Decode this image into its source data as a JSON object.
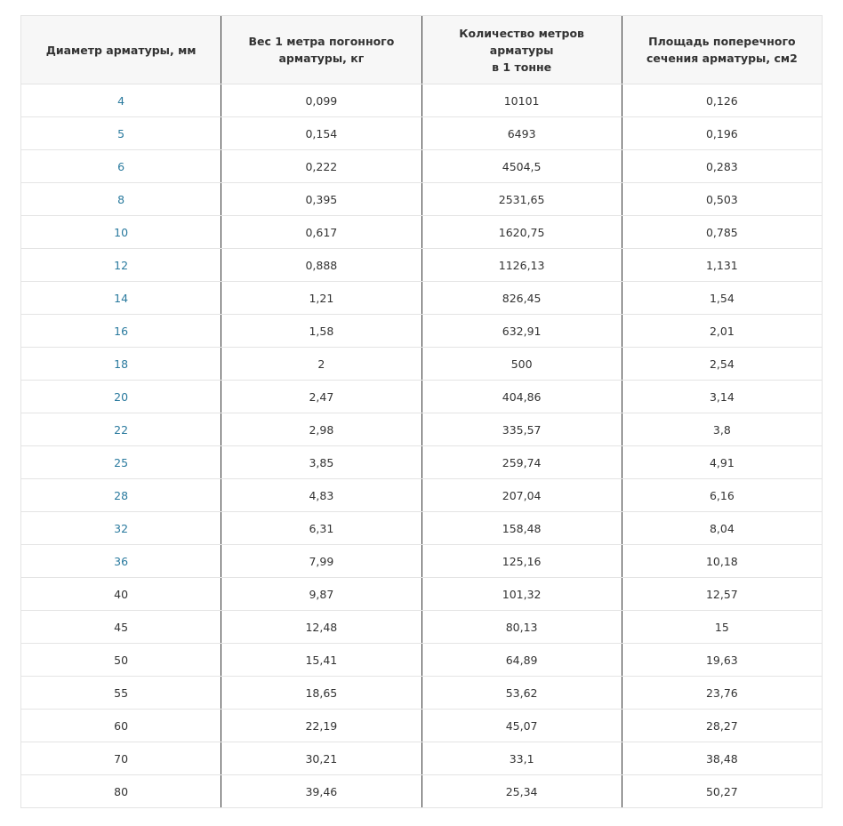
{
  "colors": {
    "link": "#2a7a9e",
    "header_bg": "#f7f7f7"
  },
  "table": {
    "headers": [
      "Диаметр арматуры, мм",
      "Вес 1 метра погонного арматуры, кг",
      "Количество метров арматуры в 1 тонне",
      "Площадь поперечного сечения арматуры, см2"
    ],
    "header_lines": [
      [
        "Диаметр арматуры, мм"
      ],
      [
        "Вес 1 метра погонного",
        "арматуры, кг"
      ],
      [
        "Количество метров",
        "арматуры",
        "в 1 тонне"
      ],
      [
        "Площадь поперечного",
        "сечения арматуры, см2"
      ]
    ],
    "rows": [
      {
        "d": "4",
        "w": "0,099",
        "m": "10101",
        "a": "0,126",
        "link": true
      },
      {
        "d": "5",
        "w": "0,154",
        "m": "6493",
        "a": "0,196",
        "link": true
      },
      {
        "d": "6",
        "w": "0,222",
        "m": "4504,5",
        "a": "0,283",
        "link": true
      },
      {
        "d": "8",
        "w": "0,395",
        "m": "2531,65",
        "a": "0,503",
        "link": true
      },
      {
        "d": "10",
        "w": "0,617",
        "m": "1620,75",
        "a": "0,785",
        "link": true
      },
      {
        "d": "12",
        "w": "0,888",
        "m": "1126,13",
        "a": "1,131",
        "link": true
      },
      {
        "d": "14",
        "w": "1,21",
        "m": "826,45",
        "a": "1,54",
        "link": true
      },
      {
        "d": "16",
        "w": "1,58",
        "m": "632,91",
        "a": "2,01",
        "link": true
      },
      {
        "d": "18",
        "w": "2",
        "m": "500",
        "a": "2,54",
        "link": true
      },
      {
        "d": "20",
        "w": "2,47",
        "m": "404,86",
        "a": "3,14",
        "link": true
      },
      {
        "d": "22",
        "w": "2,98",
        "m": "335,57",
        "a": "3,8",
        "link": true
      },
      {
        "d": "25",
        "w": "3,85",
        "m": "259,74",
        "a": "4,91",
        "link": true
      },
      {
        "d": "28",
        "w": "4,83",
        "m": "207,04",
        "a": "6,16",
        "link": true
      },
      {
        "d": "32",
        "w": "6,31",
        "m": "158,48",
        "a": "8,04",
        "link": true
      },
      {
        "d": "36",
        "w": "7,99",
        "m": "125,16",
        "a": "10,18",
        "link": true
      },
      {
        "d": "40",
        "w": "9,87",
        "m": "101,32",
        "a": "12,57",
        "link": false
      },
      {
        "d": "45",
        "w": "12,48",
        "m": "80,13",
        "a": "15",
        "link": false
      },
      {
        "d": "50",
        "w": "15,41",
        "m": "64,89",
        "a": "19,63",
        "link": false
      },
      {
        "d": "55",
        "w": "18,65",
        "m": "53,62",
        "a": "23,76",
        "link": false
      },
      {
        "d": "60",
        "w": "22,19",
        "m": "45,07",
        "a": "28,27",
        "link": false
      },
      {
        "d": "70",
        "w": "30,21",
        "m": "33,1",
        "a": "38,48",
        "link": false
      },
      {
        "d": "80",
        "w": "39,46",
        "m": "25,34",
        "a": "50,27",
        "link": false
      }
    ]
  }
}
